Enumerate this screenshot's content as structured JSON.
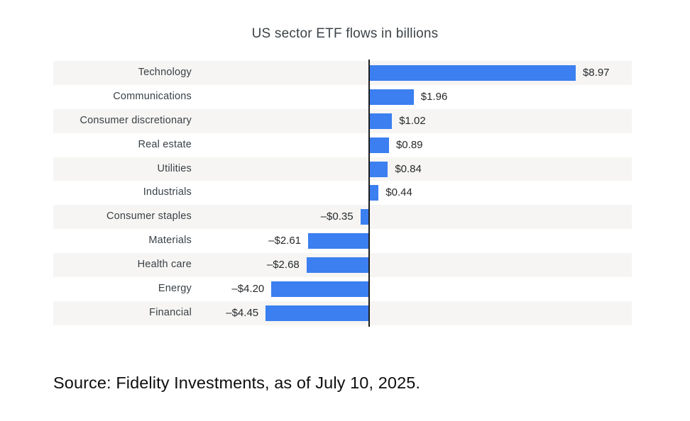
{
  "chart_data": {
    "type": "bar",
    "orientation": "horizontal",
    "title": "US sector ETF flows in billions",
    "categories": [
      "Technology",
      "Communications",
      "Consumer discretionary",
      "Real estate",
      "Utilities",
      "Industrials",
      "Consumer staples",
      "Materials",
      "Health care",
      "Energy",
      "Financial"
    ],
    "values": [
      8.97,
      1.96,
      1.02,
      0.89,
      0.84,
      0.44,
      -0.35,
      -2.61,
      -2.68,
      -4.2,
      -4.45
    ],
    "value_labels": [
      "$8.97",
      "$1.96",
      "$1.02",
      "$0.89",
      "$0.84",
      "$0.44",
      "–$0.35",
      "–$2.61",
      "–$2.68",
      "–$4.20",
      "–$4.45"
    ],
    "xlim": [
      -4.45,
      8.97
    ],
    "grid": false,
    "legend": "none",
    "bar_color": "#3b7ff0",
    "stripe_color_odd": "#f6f5f3",
    "stripe_color_even": "#ffffff",
    "axis_color": "#1c1e20"
  },
  "source_note": "Source: Fidelity Investments, as of July 10, 2025."
}
